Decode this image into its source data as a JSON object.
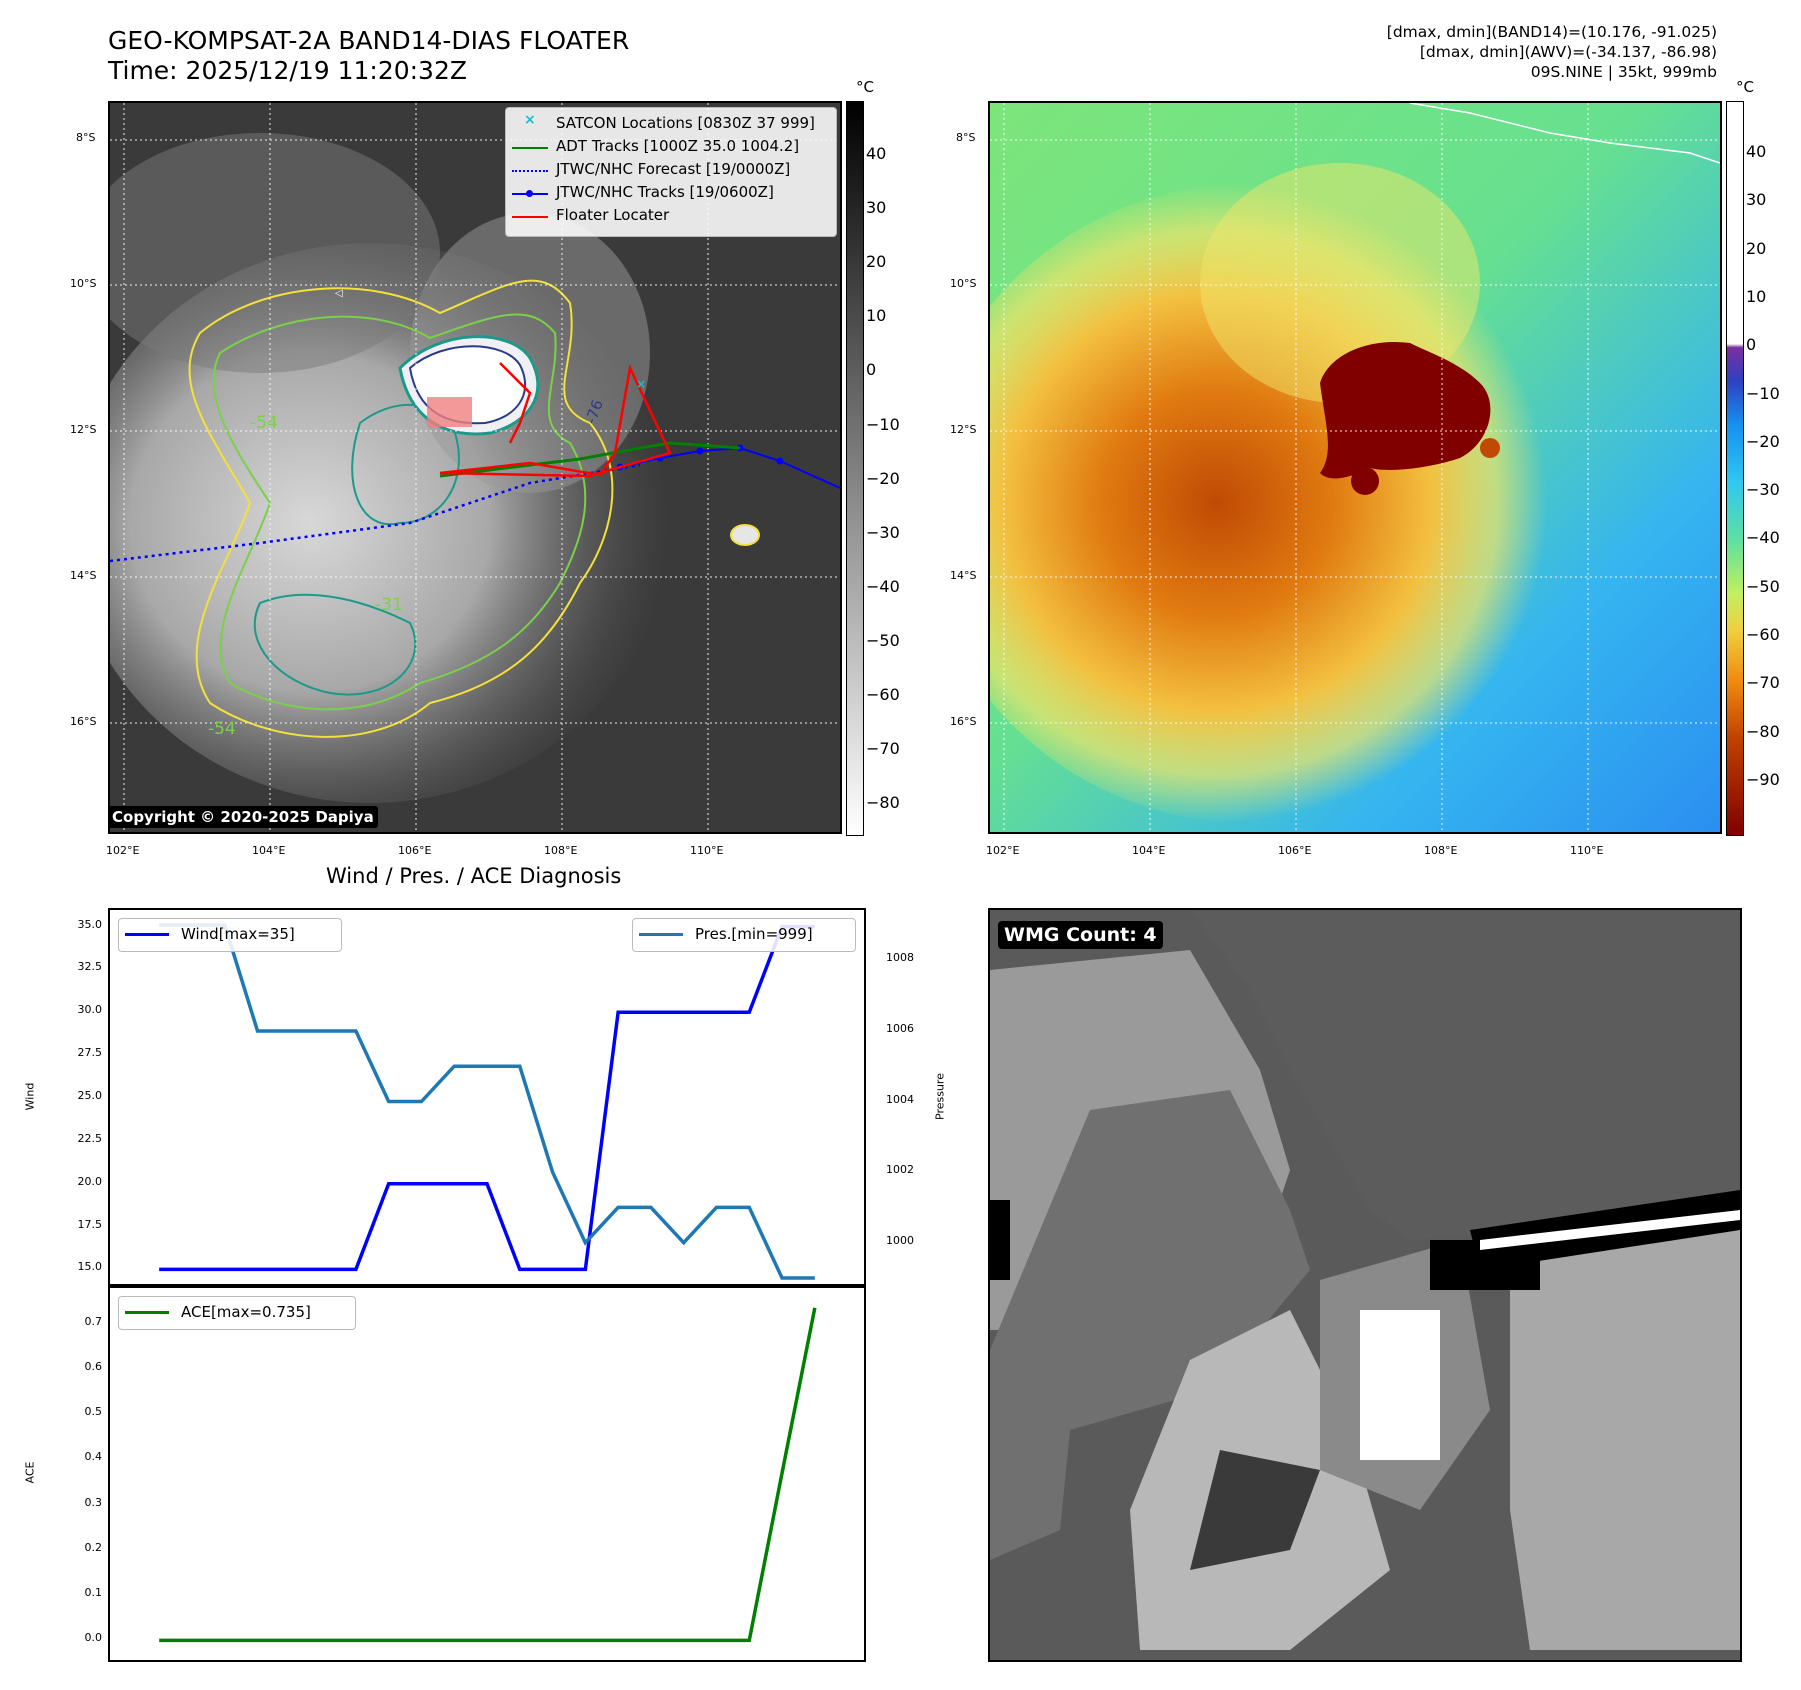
{
  "header": {
    "title_line1": "GEO-KOMPSAT-2A BAND14-DIAS FLOATER",
    "title_line2": "Time: 2025/12/19 11:20:32Z",
    "info_line1": "[dmax, dmin](BAND14)=(10.176, -91.025)",
    "info_line2": "[dmax, dmin](AWV)=(-34.137, -86.98)",
    "info_line3": "09S.NINE | 35kt, 999mb"
  },
  "maps": {
    "lat_labels": [
      "8°S",
      "10°S",
      "12°S",
      "14°S",
      "16°S"
    ],
    "lon_labels": [
      "102°E",
      "104°E",
      "106°E",
      "108°E",
      "110°E"
    ],
    "contour_labels": [
      "-54",
      "-31",
      "-54",
      "-76"
    ],
    "copyright": "Copyright © 2020-2025 Dapiya",
    "legend": [
      {
        "label": "SATCON Locations [0830Z 37 999]",
        "color": "#17becf",
        "style": "x"
      },
      {
        "label": "ADT Tracks [1000Z 35.0 1004.2]",
        "color": "#008000",
        "style": "solid"
      },
      {
        "label": "JTWC/NHC Forecast [19/0000Z]",
        "color": "#0000ff",
        "style": "dotted"
      },
      {
        "label": "JTWC/NHC Tracks [19/0600Z]",
        "color": "#0000ff",
        "style": "dot-line"
      },
      {
        "label": "Floater Locater",
        "color": "#ff0000",
        "style": "solid"
      }
    ],
    "colorbar_left": {
      "unit": "°C",
      "ticks": [
        "40",
        "30",
        "20",
        "10",
        "0",
        "−10",
        "−20",
        "−30",
        "−40",
        "−50",
        "−60",
        "−70",
        "−80"
      ]
    },
    "colorbar_right": {
      "unit": "°C",
      "ticks": [
        "40",
        "30",
        "20",
        "10",
        "0",
        "−10",
        "−20",
        "−30",
        "−40",
        "−50",
        "−60",
        "−70",
        "−80",
        "−90"
      ]
    }
  },
  "wmg": {
    "label": "WMG Count: 4"
  },
  "chart_data": [
    {
      "type": "line",
      "title": "Wind / Pres. / ACE Diagnosis",
      "ylabel": "Wind",
      "ylim": [
        14.5,
        35.5
      ],
      "yticks": [
        "35.0",
        "32.5",
        "30.0",
        "27.5",
        "25.0",
        "22.5",
        "20.0",
        "17.5",
        "15.0"
      ],
      "series": [
        {
          "name": "Wind[max=35]",
          "color": "#0000ff",
          "x": [
            0,
            1,
            2,
            3,
            4,
            5,
            6,
            7,
            8,
            9,
            10,
            11,
            12,
            13,
            14,
            15,
            16,
            17,
            18,
            19,
            20
          ],
          "values": [
            15,
            15,
            15,
            15,
            15,
            15,
            15,
            20,
            20,
            20,
            20,
            15,
            15,
            15,
            30,
            30,
            30,
            30,
            30,
            35,
            35
          ]
        }
      ],
      "legend": "top-left"
    },
    {
      "type": "line",
      "ylabel": "Pressure",
      "ylim": [
        999,
        1009.2
      ],
      "yticks": [
        "1008",
        "1006",
        "1004",
        "1002",
        "1000"
      ],
      "series": [
        {
          "name": "Pres.[min=999]",
          "color": "#1f77b4",
          "x": [
            0,
            1,
            2,
            3,
            4,
            5,
            6,
            7,
            8,
            9,
            10,
            11,
            12,
            13,
            14,
            15,
            16,
            17,
            18,
            19,
            20
          ],
          "values": [
            1009,
            1009,
            1009,
            1006,
            1006,
            1006,
            1006,
            1004,
            1004,
            1005,
            1005,
            1005,
            1002,
            1000,
            1001,
            1001,
            1000,
            1001,
            1001,
            999,
            999
          ]
        }
      ],
      "legend": "top-right"
    },
    {
      "type": "line",
      "ylabel": "ACE",
      "ylim": [
        -0.03,
        0.77
      ],
      "yticks": [
        "0.7",
        "0.6",
        "0.5",
        "0.4",
        "0.3",
        "0.2",
        "0.1",
        "0.0"
      ],
      "series": [
        {
          "name": "ACE[max=0.735]",
          "color": "#008000",
          "x": [
            0,
            1,
            2,
            3,
            4,
            5,
            6,
            7,
            8,
            9,
            10,
            11,
            12,
            13,
            14,
            15,
            16,
            17,
            18,
            19,
            20
          ],
          "values": [
            0,
            0,
            0,
            0,
            0,
            0,
            0,
            0,
            0,
            0,
            0,
            0,
            0,
            0,
            0,
            0,
            0,
            0,
            0,
            0.37,
            0.735
          ]
        }
      ],
      "legend": "top-left"
    }
  ]
}
